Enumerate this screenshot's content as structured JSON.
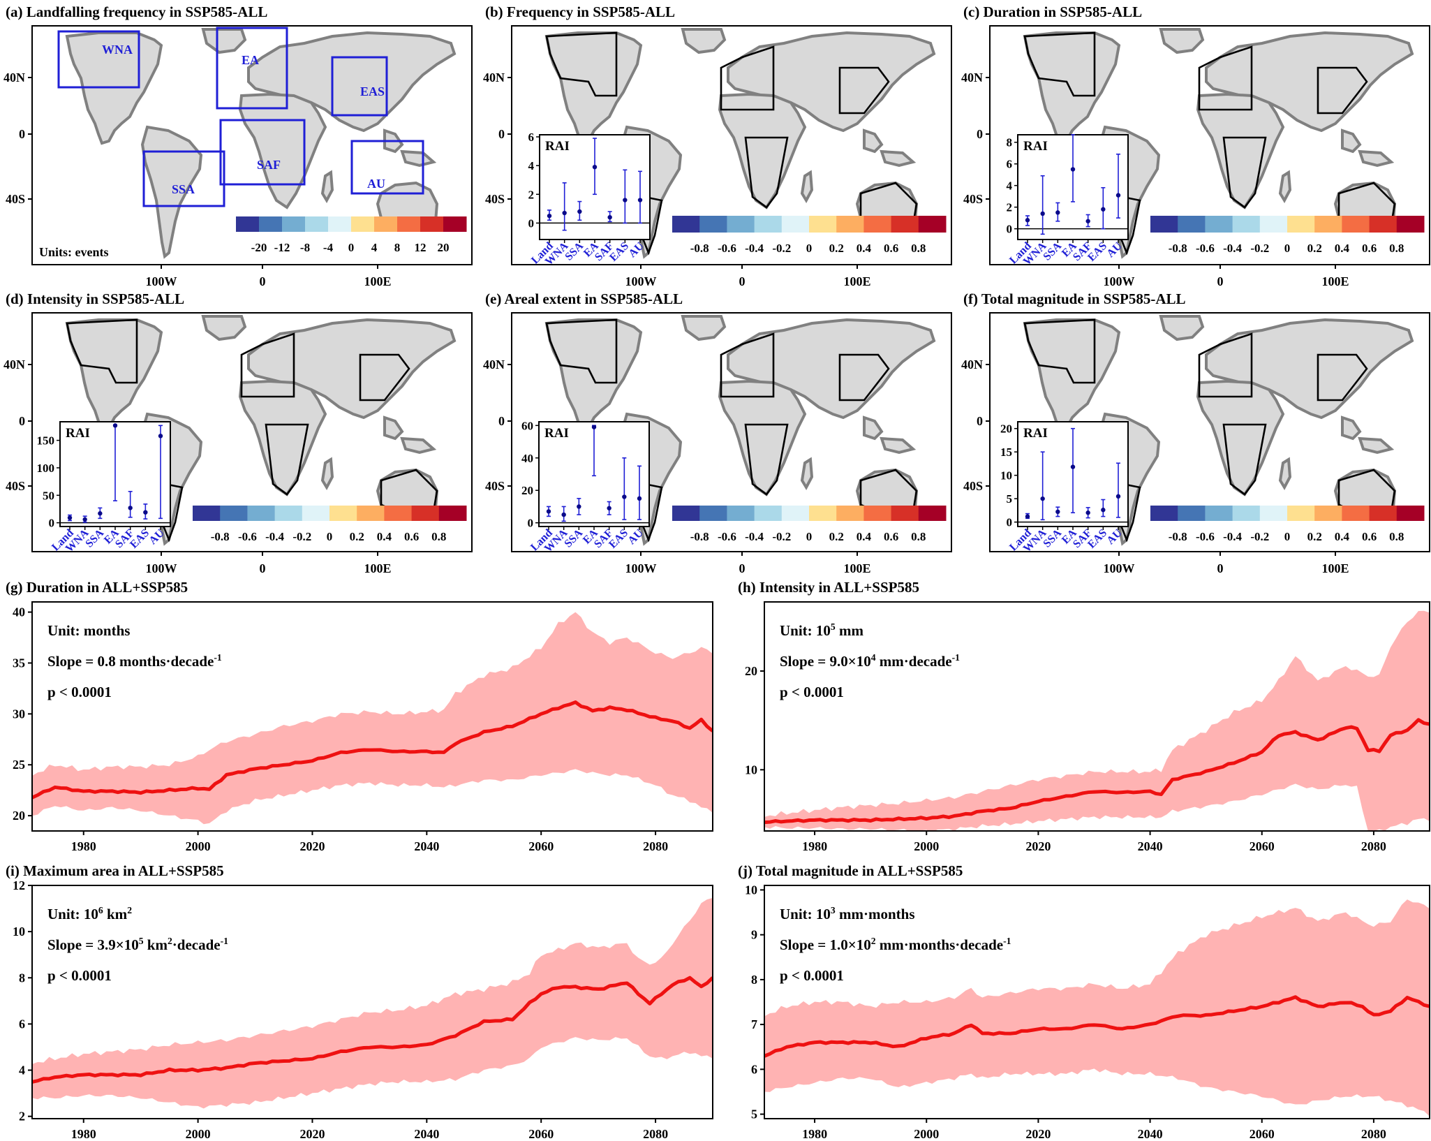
{
  "colors": {
    "ocean": "#ffffff",
    "land_gray": "#d9d9d9",
    "coast_gray": "#808080",
    "region_box": "#1f1fd6",
    "region_text": "#1f1fd6",
    "line": "#ee1111",
    "band": "#ffb3b3",
    "rai_point": "#0a0a8a",
    "rai_bar": "#1f1fd6"
  },
  "palette": [
    "#313695",
    "#4575b4",
    "#74add1",
    "#abd9e9",
    "#e0f3f8",
    "#fee090",
    "#fdae61",
    "#f46d43",
    "#d73027",
    "#a50026"
  ],
  "map_axes": {
    "lon_ticks": [
      "100W",
      "0",
      "100E"
    ],
    "lat_ticks": [
      "40N",
      "0",
      "40S"
    ]
  },
  "panels": {
    "a": {
      "title": "(a) Landfalling frequency in SSP585-ALL",
      "units": "Units: events",
      "colorbar_ticks": [
        "-20",
        "-12",
        "-8",
        "-4",
        "0",
        "4",
        "8",
        "12",
        "20"
      ],
      "regions": [
        "WNA",
        "EA",
        "EAS",
        "SSA",
        "SAF",
        "AU"
      ]
    },
    "b": {
      "title": "(b) Frequency in SSP585-ALL",
      "colorbar_ticks": [
        "-0.8",
        "-0.6",
        "-0.4",
        "-0.2",
        "0",
        "0.2",
        "0.4",
        "0.6",
        "0.8"
      ]
    },
    "c": {
      "title": "(c) Duration in SSP585-ALL",
      "colorbar_ticks": [
        "-0.8",
        "-0.6",
        "-0.4",
        "-0.2",
        "0",
        "0.2",
        "0.4",
        "0.6",
        "0.8"
      ]
    },
    "d": {
      "title": "(d) Intensity in SSP585-ALL",
      "colorbar_ticks": [
        "-0.8",
        "-0.6",
        "-0.4",
        "-0.2",
        "0",
        "0.2",
        "0.4",
        "0.6",
        "0.8"
      ]
    },
    "e": {
      "title": "(e) Areal extent in SSP585-ALL",
      "colorbar_ticks": [
        "-0.8",
        "-0.6",
        "-0.4",
        "-0.2",
        "0",
        "0.2",
        "0.4",
        "0.6",
        "0.8"
      ]
    },
    "f": {
      "title": "(f) Total magnitude in SSP585-ALL",
      "colorbar_ticks": [
        "-0.8",
        "-0.6",
        "-0.4",
        "-0.2",
        "0",
        "0.2",
        "0.4",
        "0.6",
        "0.8"
      ]
    }
  },
  "chart_data": [
    {
      "panel": "b",
      "type": "scatter",
      "title": "RAI",
      "categories": [
        "Land",
        "WNA",
        "SSA",
        "EA",
        "SAF",
        "EAS",
        "AU"
      ],
      "values": [
        0.5,
        0.7,
        0.8,
        3.9,
        0.4,
        1.6,
        1.6
      ],
      "lower": [
        0.2,
        -0.5,
        0.2,
        2.0,
        0.1,
        0.0,
        0.0
      ],
      "upper": [
        0.9,
        2.8,
        1.5,
        5.9,
        0.8,
        3.7,
        3.6
      ],
      "yticks": [
        0,
        2,
        4,
        6
      ],
      "ylim": [
        -1,
        6
      ]
    },
    {
      "panel": "c",
      "type": "scatter",
      "title": "RAI",
      "categories": [
        "Land",
        "WNA",
        "SSA",
        "EA",
        "SAF",
        "EAS",
        "AU"
      ],
      "values": [
        0.8,
        1.4,
        1.5,
        5.5,
        0.7,
        1.8,
        3.1
      ],
      "lower": [
        0.3,
        -0.5,
        0.7,
        2.5,
        0.2,
        0.0,
        1.0
      ],
      "upper": [
        1.2,
        4.9,
        2.4,
        8.7,
        1.3,
        3.8,
        6.9
      ],
      "yticks": [
        0,
        2,
        4,
        6,
        8
      ],
      "ylim": [
        -0.8,
        8.5
      ]
    },
    {
      "panel": "d",
      "type": "scatter",
      "title": "RAI",
      "categories": [
        "Land",
        "WNA",
        "SSA",
        "EA",
        "SAF",
        "EAS",
        "AU"
      ],
      "values": [
        9,
        6,
        17,
        177,
        27,
        19,
        158
      ],
      "lower": [
        4,
        1,
        8,
        40,
        10,
        7,
        8
      ],
      "upper": [
        14,
        12,
        27,
        178,
        57,
        34,
        177
      ],
      "yticks": [
        0,
        50,
        100,
        150
      ],
      "ylim": [
        -3,
        180
      ]
    },
    {
      "panel": "e",
      "type": "scatter",
      "title": "RAI",
      "categories": [
        "Land",
        "WNA",
        "SSA",
        "EA",
        "SAF",
        "EAS",
        "AU"
      ],
      "values": [
        7,
        5,
        10,
        59,
        9,
        16,
        15
      ],
      "lower": [
        4,
        1,
        5,
        29,
        5,
        2,
        2
      ],
      "upper": [
        10,
        10,
        15,
        60,
        13,
        40,
        35
      ],
      "yticks": [
        0,
        20,
        40,
        60
      ],
      "ylim": [
        -1,
        61
      ]
    },
    {
      "panel": "f",
      "type": "scatter",
      "title": "RAI",
      "categories": [
        "Land",
        "WNA",
        "SSA",
        "EA",
        "SAF",
        "EAS",
        "AU"
      ],
      "values": [
        1.2,
        5.0,
        2.2,
        11.8,
        2.0,
        2.6,
        5.5
      ],
      "lower": [
        0.8,
        0.5,
        1.2,
        2.0,
        0.9,
        1.2,
        1.0
      ],
      "upper": [
        1.8,
        15.0,
        3.2,
        20.0,
        3.1,
        4.8,
        12.6
      ],
      "yticks": [
        0,
        5,
        10,
        15,
        20
      ],
      "ylim": [
        -0.5,
        21
      ]
    },
    {
      "panel": "g",
      "type": "line",
      "title": "(g) Duration in ALL+SSP585",
      "unit": "Unit: months",
      "slope": "Slope = 0.8 months·decade",
      "slope_sup": "-1",
      "pvalue": "p < 0.0001",
      "xlim": [
        1971,
        2090
      ],
      "xticks": [
        1980,
        2000,
        2020,
        2040,
        2060,
        2080
      ],
      "ylim": [
        18.5,
        41
      ],
      "yticks": [
        20,
        25,
        30,
        35,
        40
      ],
      "anchors_x": [
        1971,
        1975,
        1980,
        1985,
        1990,
        1995,
        2000,
        2002,
        2005,
        2010,
        2015,
        2020,
        2025,
        2030,
        2035,
        2040,
        2043,
        2045,
        2050,
        2055,
        2060,
        2063,
        2066,
        2069,
        2072,
        2075,
        2080,
        2083,
        2086,
        2088,
        2090
      ],
      "mean": [
        21.8,
        22.8,
        22.4,
        22.4,
        22.3,
        22.5,
        22.7,
        22.6,
        24.0,
        24.6,
        25.0,
        25.4,
        26.2,
        26.5,
        26.3,
        26.3,
        26.2,
        27.1,
        28.2,
        28.8,
        30.0,
        30.6,
        31.1,
        30.3,
        30.6,
        30.4,
        29.6,
        29.3,
        28.6,
        29.4,
        28.3
      ],
      "upper": [
        24.0,
        25.0,
        24.5,
        24.8,
        24.8,
        25.0,
        25.8,
        26.5,
        27.3,
        28.0,
        28.8,
        29.3,
        30.0,
        30.2,
        30.0,
        30.2,
        30.4,
        32.0,
        33.8,
        34.5,
        36.5,
        38.8,
        40.0,
        38.0,
        37.0,
        37.5,
        36.0,
        35.5,
        36.0,
        36.5,
        36.0
      ],
      "lower": [
        20.0,
        21.0,
        20.5,
        20.8,
        20.5,
        20.0,
        19.5,
        19.2,
        20.5,
        21.5,
        22.0,
        22.5,
        23.0,
        23.2,
        23.0,
        23.0,
        22.8,
        23.0,
        23.5,
        23.5,
        24.0,
        24.2,
        24.5,
        24.2,
        24.0,
        24.0,
        23.0,
        22.0,
        21.5,
        20.8,
        20.5
      ]
    },
    {
      "panel": "h",
      "type": "line",
      "title": "(h) Intensity in ALL+SSP585",
      "unit": "Unit: 10",
      "unit_sup": "5",
      "unit_tail": " mm",
      "slope": "Slope = 9.0×10",
      "slope_sup": "4",
      "slope_tail": " mm·decade",
      "slope_sup2": "-1",
      "pvalue": "p < 0.0001",
      "xlim": [
        1971,
        2090
      ],
      "xticks": [
        1980,
        2000,
        2020,
        2040,
        2060,
        2080
      ],
      "ylim": [
        3.8,
        27
      ],
      "yticks": [
        10,
        20
      ],
      "anchors_x": [
        1971,
        1975,
        1980,
        1985,
        1990,
        1995,
        2000,
        2005,
        2010,
        2015,
        2020,
        2025,
        2030,
        2035,
        2040,
        2042,
        2044,
        2050,
        2055,
        2060,
        2063,
        2066,
        2070,
        2075,
        2077,
        2079,
        2081,
        2083,
        2086,
        2088,
        2090
      ],
      "mean": [
        4.7,
        4.8,
        4.9,
        4.9,
        4.9,
        5.0,
        5.1,
        5.3,
        5.8,
        6.1,
        6.8,
        7.3,
        7.8,
        7.7,
        7.8,
        7.5,
        9.0,
        9.8,
        10.7,
        11.8,
        13.5,
        13.8,
        13.0,
        14.3,
        14.2,
        12.0,
        11.9,
        13.5,
        14.0,
        15.0,
        14.6
      ],
      "upper": [
        5.3,
        5.6,
        5.9,
        6.2,
        6.4,
        6.6,
        6.9,
        7.2,
        7.8,
        8.4,
        9.0,
        9.4,
        9.8,
        9.8,
        9.8,
        10.0,
        12.0,
        14.0,
        15.8,
        17.0,
        19.0,
        21.5,
        19.0,
        20.5,
        20.0,
        19.5,
        19.5,
        22.5,
        25.0,
        26.0,
        26.0
      ],
      "lower": [
        4.2,
        4.1,
        4.1,
        4.0,
        4.0,
        3.9,
        3.8,
        4.0,
        4.3,
        4.5,
        4.8,
        5.0,
        5.2,
        5.2,
        5.2,
        5.2,
        5.8,
        6.3,
        6.8,
        7.5,
        8.0,
        8.5,
        8.0,
        8.5,
        8.2,
        3.8,
        3.8,
        4.2,
        4.6,
        5.0,
        5.0
      ]
    },
    {
      "panel": "i",
      "type": "line",
      "title": "(i) Maximum area in ALL+SSP585",
      "unit": "Unit: 10",
      "unit_sup": "6",
      "unit_tail": " km",
      "unit_sup2": "2",
      "slope": "Slope = 3.9×10",
      "slope_sup": "5",
      "slope_tail": " km",
      "slope_sup2": "2",
      "slope_tail2": "·decade",
      "slope_sup3": "-1",
      "pvalue": "p < 0.0001",
      "xlim": [
        1971,
        2090
      ],
      "xticks": [
        1980,
        2000,
        2020,
        2040,
        2060,
        2080
      ],
      "ylim": [
        1.9,
        12
      ],
      "yticks": [
        2,
        4,
        6,
        8,
        10,
        12
      ],
      "anchors_x": [
        1971,
        1975,
        1980,
        1985,
        1990,
        1995,
        2000,
        2005,
        2010,
        2015,
        2020,
        2025,
        2030,
        2035,
        2040,
        2045,
        2050,
        2055,
        2058,
        2060,
        2063,
        2066,
        2070,
        2075,
        2077,
        2079,
        2081,
        2083,
        2086,
        2088,
        2090
      ],
      "mean": [
        3.5,
        3.7,
        3.8,
        3.8,
        3.8,
        4.0,
        4.0,
        4.1,
        4.3,
        4.4,
        4.5,
        4.8,
        5.0,
        5.0,
        5.1,
        5.5,
        6.1,
        6.2,
        6.9,
        7.3,
        7.6,
        7.6,
        7.5,
        7.8,
        7.3,
        6.9,
        7.3,
        7.7,
        8.0,
        7.6,
        8.0
      ],
      "upper": [
        4.3,
        4.5,
        4.7,
        4.8,
        4.9,
        5.1,
        5.2,
        5.3,
        5.5,
        5.7,
        5.9,
        6.2,
        6.5,
        6.6,
        6.8,
        7.3,
        7.5,
        7.8,
        8.2,
        9.0,
        9.2,
        9.5,
        9.3,
        9.5,
        8.8,
        8.6,
        8.8,
        9.5,
        10.5,
        11.2,
        11.5
      ],
      "lower": [
        2.8,
        2.8,
        2.9,
        2.9,
        2.8,
        2.6,
        2.4,
        2.5,
        2.6,
        2.8,
        3.0,
        3.2,
        3.4,
        3.5,
        3.5,
        3.6,
        4.0,
        4.2,
        4.5,
        5.0,
        5.2,
        5.4,
        5.3,
        5.4,
        5.0,
        4.6,
        4.5,
        4.6,
        4.8,
        4.6,
        4.6
      ]
    },
    {
      "panel": "j",
      "type": "line",
      "title": "(j) Total magnitude in ALL+SSP585",
      "unit": "Unit: 10",
      "unit_sup": "3",
      "unit_tail": " mm·months",
      "slope": "Slope = 1.0×10",
      "slope_sup": "2",
      "slope_tail": " mm·months·decade",
      "slope_sup2": "-1",
      "pvalue": "p < 0.0001",
      "xlim": [
        1971,
        2090
      ],
      "xticks": [
        1980,
        2000,
        2020,
        2040,
        2060,
        2080
      ],
      "ylim": [
        4.9,
        10.1
      ],
      "yticks": [
        5,
        6,
        7,
        8,
        9,
        10
      ],
      "anchors_x": [
        1971,
        1975,
        1980,
        1985,
        1990,
        1995,
        2000,
        2005,
        2008,
        2010,
        2015,
        2020,
        2025,
        2030,
        2035,
        2040,
        2045,
        2050,
        2055,
        2060,
        2063,
        2066,
        2070,
        2075,
        2078,
        2080,
        2083,
        2086,
        2088,
        2090
      ],
      "mean": [
        6.3,
        6.5,
        6.6,
        6.6,
        6.6,
        6.5,
        6.7,
        6.8,
        7.0,
        6.8,
        6.8,
        6.9,
        6.9,
        7.0,
        6.9,
        7.0,
        7.2,
        7.2,
        7.3,
        7.4,
        7.5,
        7.6,
        7.4,
        7.5,
        7.4,
        7.2,
        7.3,
        7.6,
        7.5,
        7.4
      ],
      "upper": [
        7.2,
        7.4,
        7.5,
        7.5,
        7.4,
        7.5,
        7.5,
        7.6,
        7.8,
        7.6,
        7.7,
        7.8,
        7.8,
        7.9,
        7.8,
        7.9,
        8.6,
        9.0,
        9.2,
        9.4,
        9.5,
        9.6,
        9.3,
        9.5,
        9.3,
        9.2,
        9.3,
        9.8,
        9.7,
        9.6
      ],
      "lower": [
        5.5,
        5.6,
        5.7,
        5.8,
        5.8,
        5.6,
        5.7,
        5.8,
        5.9,
        5.8,
        5.9,
        5.9,
        5.9,
        6.0,
        5.9,
        5.9,
        5.8,
        5.6,
        5.5,
        5.4,
        5.3,
        5.2,
        5.3,
        5.4,
        5.4,
        5.4,
        5.3,
        5.2,
        5.1,
        5.0
      ]
    }
  ]
}
